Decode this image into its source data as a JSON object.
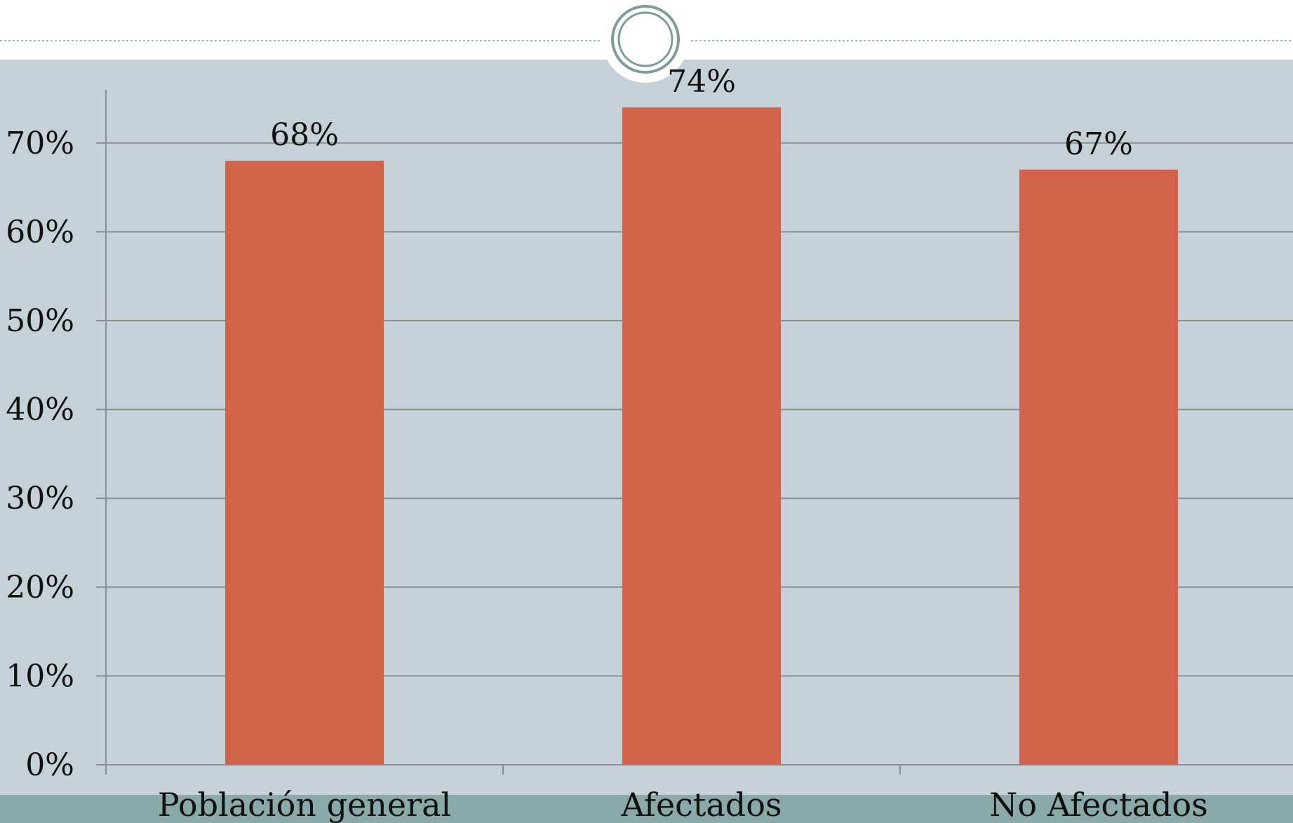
{
  "colors": {
    "slide_background": "#ffffff",
    "plot_background": "#c5d0d7",
    "footer_band": "#8aaaa9",
    "bar": "#d1634a",
    "gridline": "#8a8f93",
    "axis": "#8a8f93",
    "ornament_ring": "#7f9c9b",
    "header_rule": "#8aa3a3"
  },
  "decoration": {
    "ornament_icon": "circle-ornament-icon"
  },
  "chart_data": {
    "type": "bar",
    "categories": [
      "Población general",
      "Afectados",
      "No Afectados"
    ],
    "values": [
      68,
      74,
      67
    ],
    "data_labels": [
      "68%",
      "74%",
      "67%"
    ],
    "ylim": [
      0,
      70
    ],
    "yticks": [
      0,
      10,
      20,
      30,
      40,
      50,
      60,
      70
    ],
    "ytick_labels": [
      "0%",
      "10%",
      "20%",
      "30%",
      "40%",
      "50%",
      "60%",
      "70%"
    ],
    "grid": true,
    "legend": "none",
    "title": "",
    "xlabel": "",
    "ylabel": ""
  }
}
